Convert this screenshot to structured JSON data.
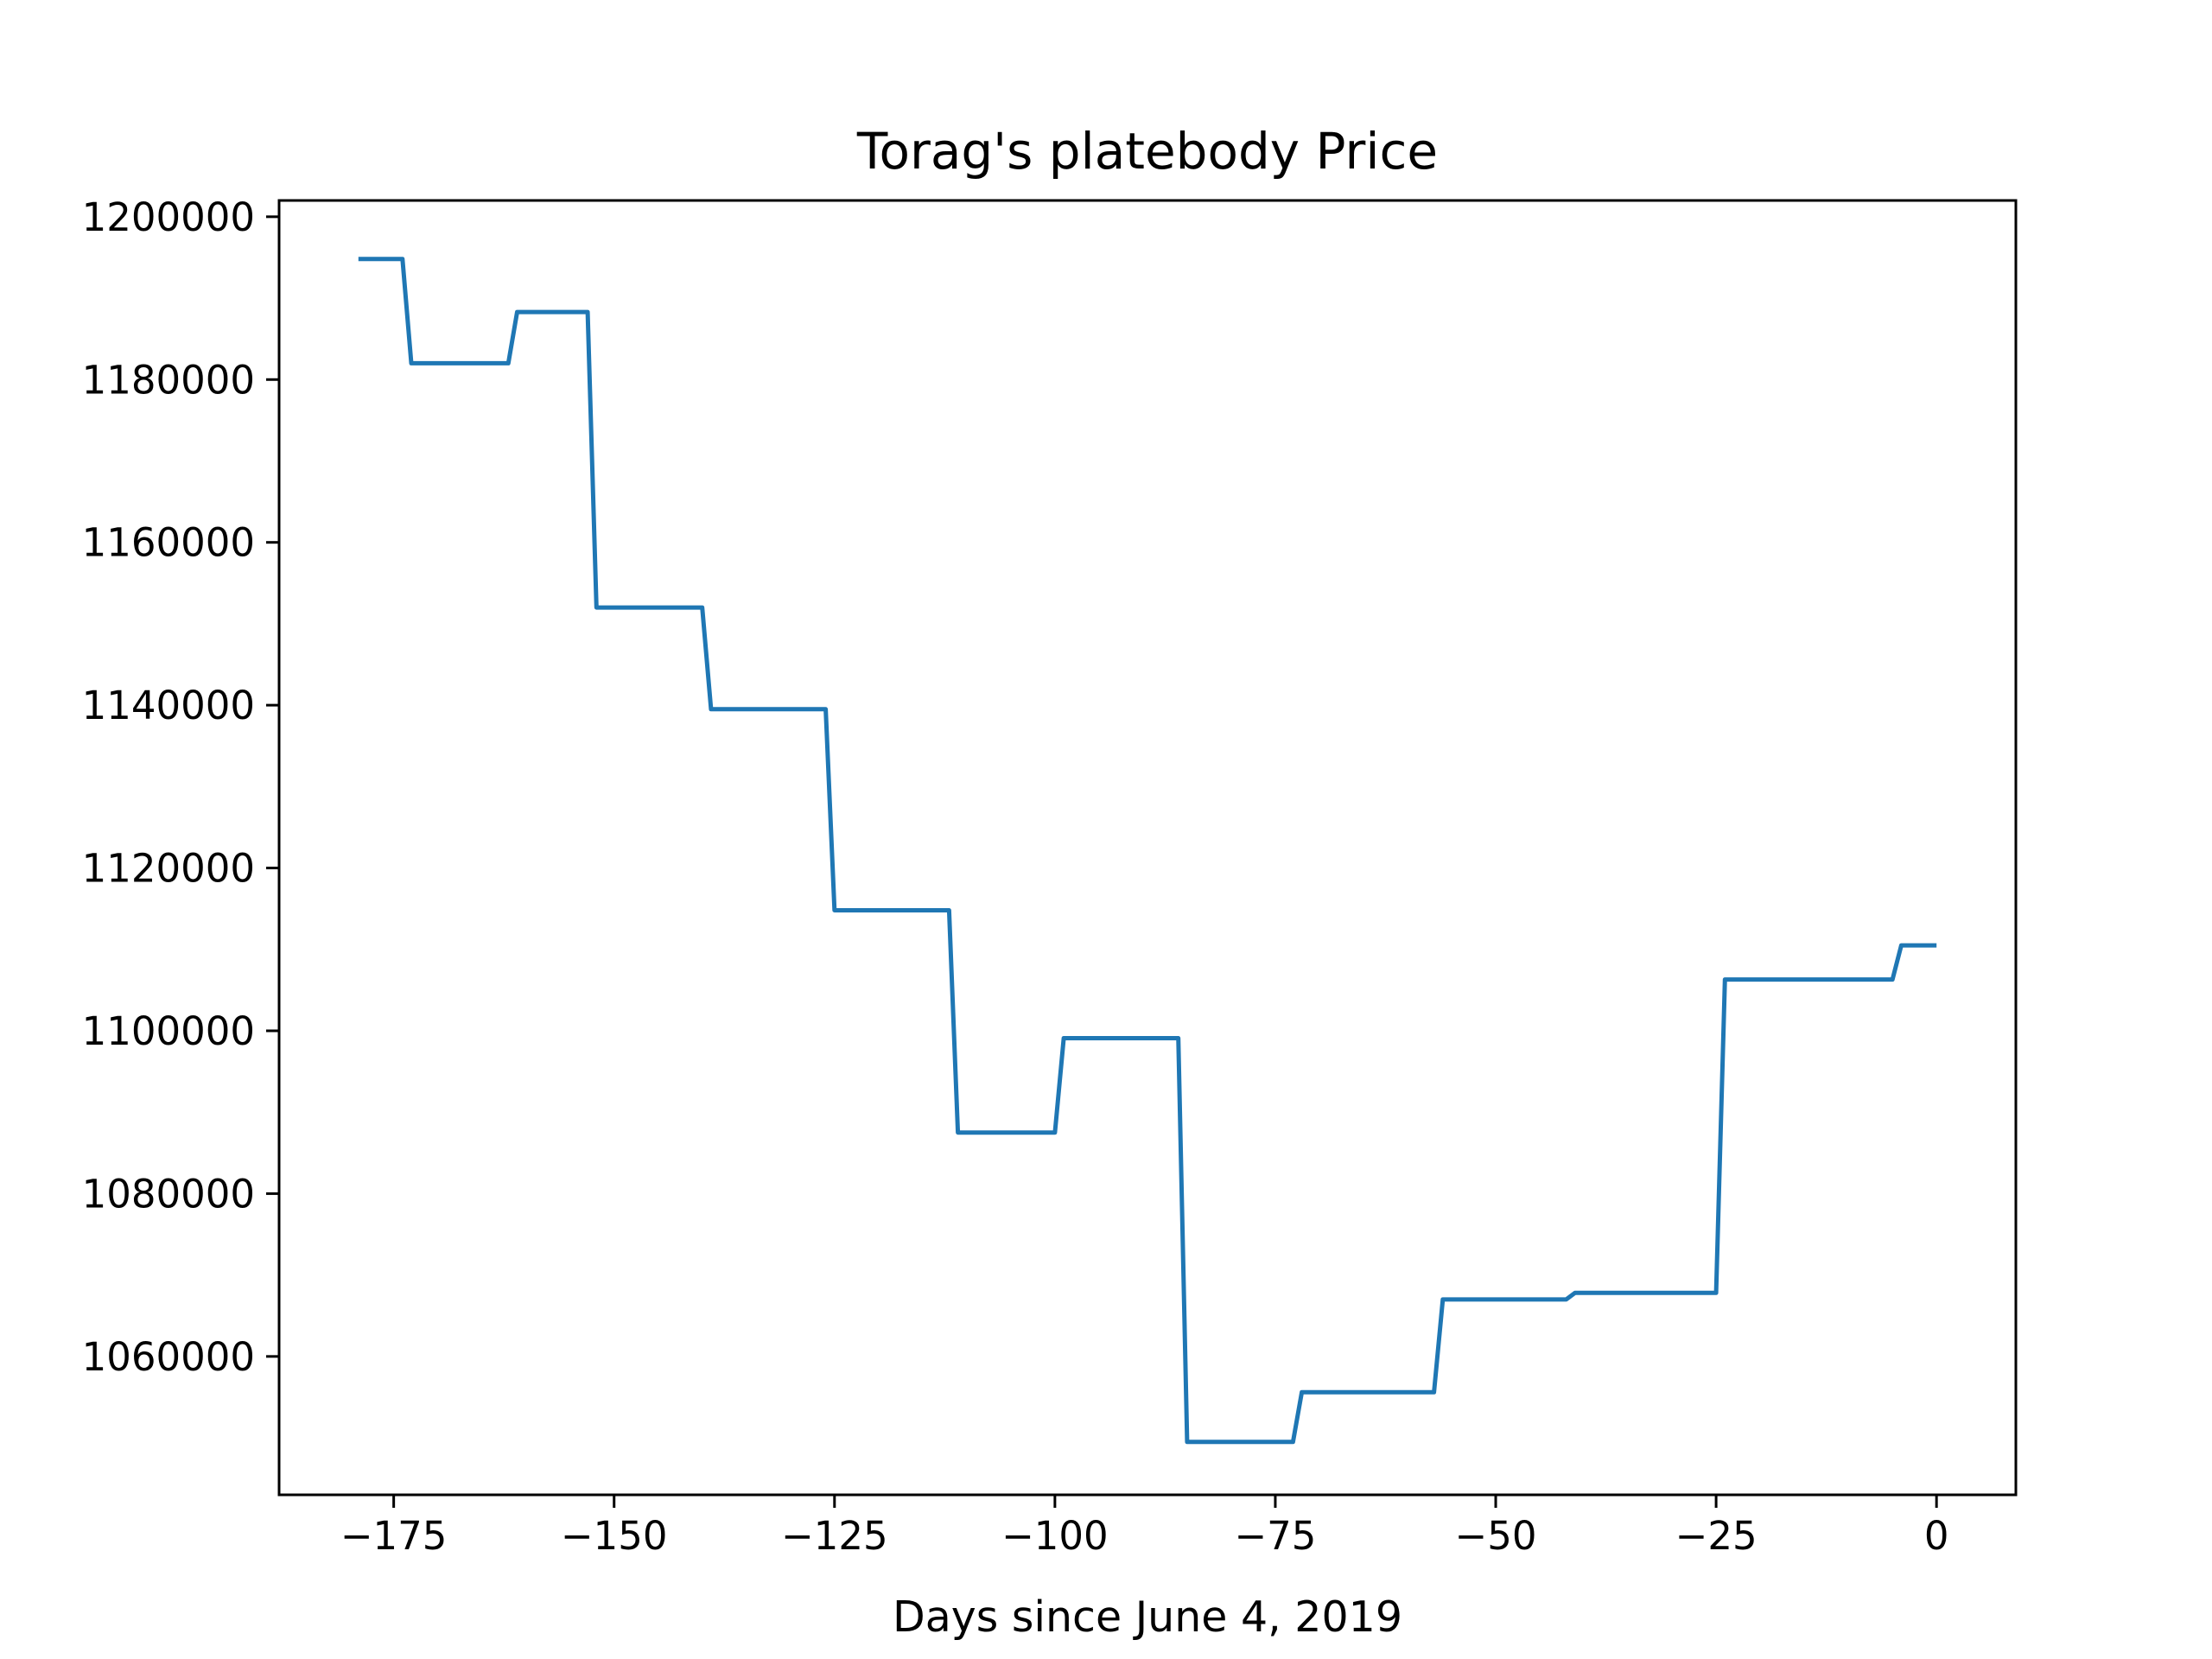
{
  "chart_data": {
    "type": "line",
    "title": "Torag's platebody Price",
    "xlabel": "Days since June 4, 2019",
    "ylabel": "",
    "xlim": [
      -188,
      9
    ],
    "ylim": [
      1043000,
      1202000
    ],
    "xticks": [
      -175,
      -150,
      -125,
      -100,
      -75,
      -50,
      -25,
      0
    ],
    "xtick_labels": [
      "−175",
      "−150",
      "−125",
      "−100",
      "−75",
      "−50",
      "−25",
      "0"
    ],
    "yticks": [
      1060000,
      1080000,
      1100000,
      1120000,
      1140000,
      1160000,
      1180000,
      1200000
    ],
    "ytick_labels": [
      "1060000",
      "1080000",
      "1100000",
      "1120000",
      "1140000",
      "1160000",
      "1180000",
      "1200000"
    ],
    "grid": false,
    "legend": "none",
    "series": [
      {
        "color": "#1f77b4",
        "x": [
          -179,
          -174,
          -173,
          -162,
          -161,
          -153,
          -152,
          -140,
          -139,
          -126,
          -125,
          -112,
          -111,
          -100,
          -99,
          -86,
          -85,
          -73,
          -72,
          -57,
          -56,
          -42,
          -41,
          -25,
          -24,
          -5,
          -4,
          0
        ],
        "y": [
          1194800,
          1194800,
          1182000,
          1182000,
          1188300,
          1188300,
          1152000,
          1152000,
          1139500,
          1139500,
          1114800,
          1114800,
          1087500,
          1087500,
          1099100,
          1099100,
          1049500,
          1049500,
          1055600,
          1055600,
          1067000,
          1067000,
          1067800,
          1067800,
          1106300,
          1106300,
          1110500,
          1110500
        ]
      }
    ]
  }
}
